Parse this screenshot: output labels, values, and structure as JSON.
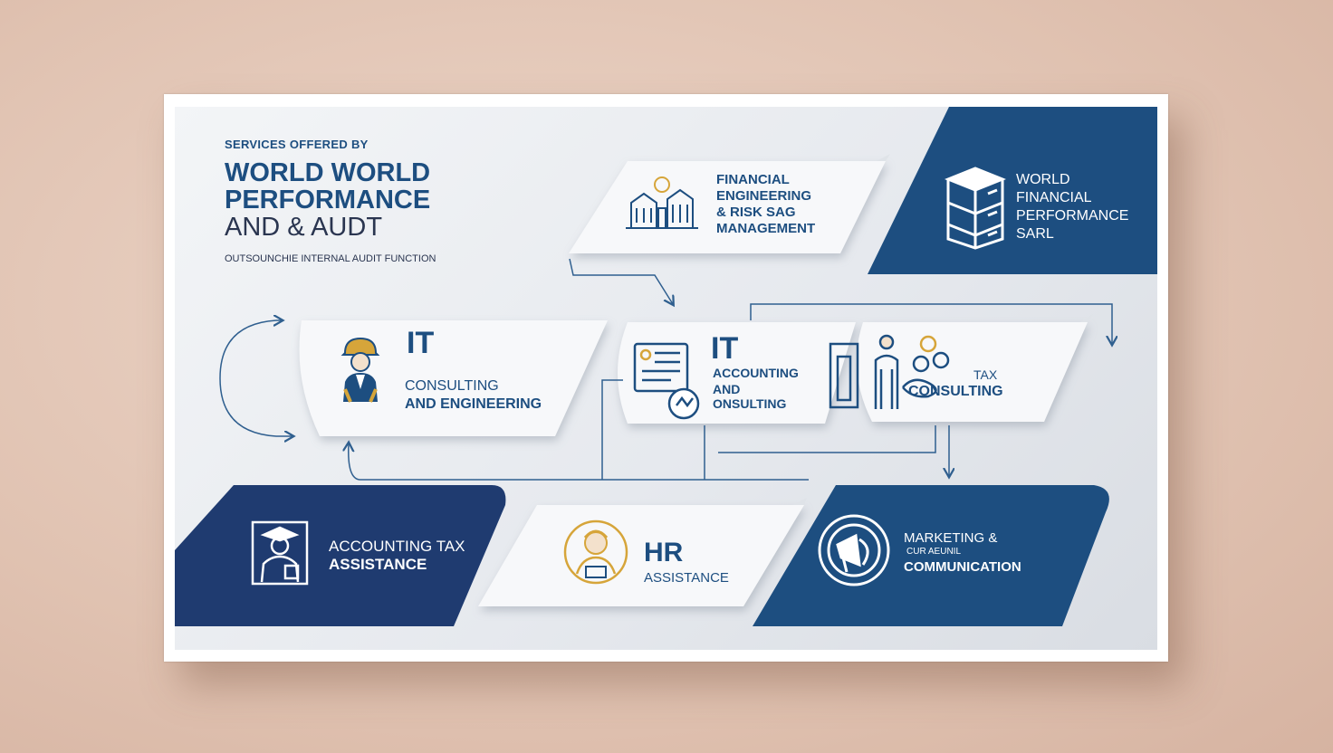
{
  "header": {
    "kicker": "SERVICES OFFERED BY",
    "title_lines": [
      "WORLD WORLD",
      "PERFORMANCE",
      "AND & AUDT"
    ],
    "subtitle": "OUTSOUNCHIE INTERNAL AUDIT FUNCTION"
  },
  "company": {
    "name_lines": [
      "WORLD",
      "FINANCIAL",
      "PERFORMANCE",
      "SARL"
    ],
    "icon": "server-stack-icon"
  },
  "services": {
    "financial": {
      "lines": [
        "FINANCIAL",
        "ENGINEERING",
        "& RISK SAG",
        "MANAGEMENT"
      ],
      "icon": "buildings-icon"
    },
    "it_consulting": {
      "title": "IT",
      "lines": [
        "CONSULTING",
        "AND ENGINEERING"
      ],
      "icon": "engineer-icon"
    },
    "it_accounting": {
      "title": "IT",
      "lines": [
        "ACCOUNTING",
        "AND",
        "ONSULTING"
      ],
      "icon": "monitor-chart-icon"
    },
    "tax_consulting": {
      "lines": [
        "TAX",
        "CONSULTING"
      ],
      "icon": "consultants-icon"
    },
    "accounting_tax": {
      "lines": [
        "ACCOUNTING TAX",
        "ASSISTANCE"
      ],
      "icon": "accountant-icon"
    },
    "hr": {
      "title": "HR",
      "lines": [
        "ASSISTANCE"
      ],
      "icon": "person-circle-icon"
    },
    "marketing": {
      "lines": [
        "MARKETING &",
        "CUR AEUNIL",
        "COMMUNICATION"
      ],
      "icon": "megaphone-hand-icon"
    }
  },
  "colors": {
    "navy": "#1d4e80",
    "deep_navy": "#1f3b70",
    "gold": "#d6a53a",
    "light_panel": "#f7f8fa"
  }
}
